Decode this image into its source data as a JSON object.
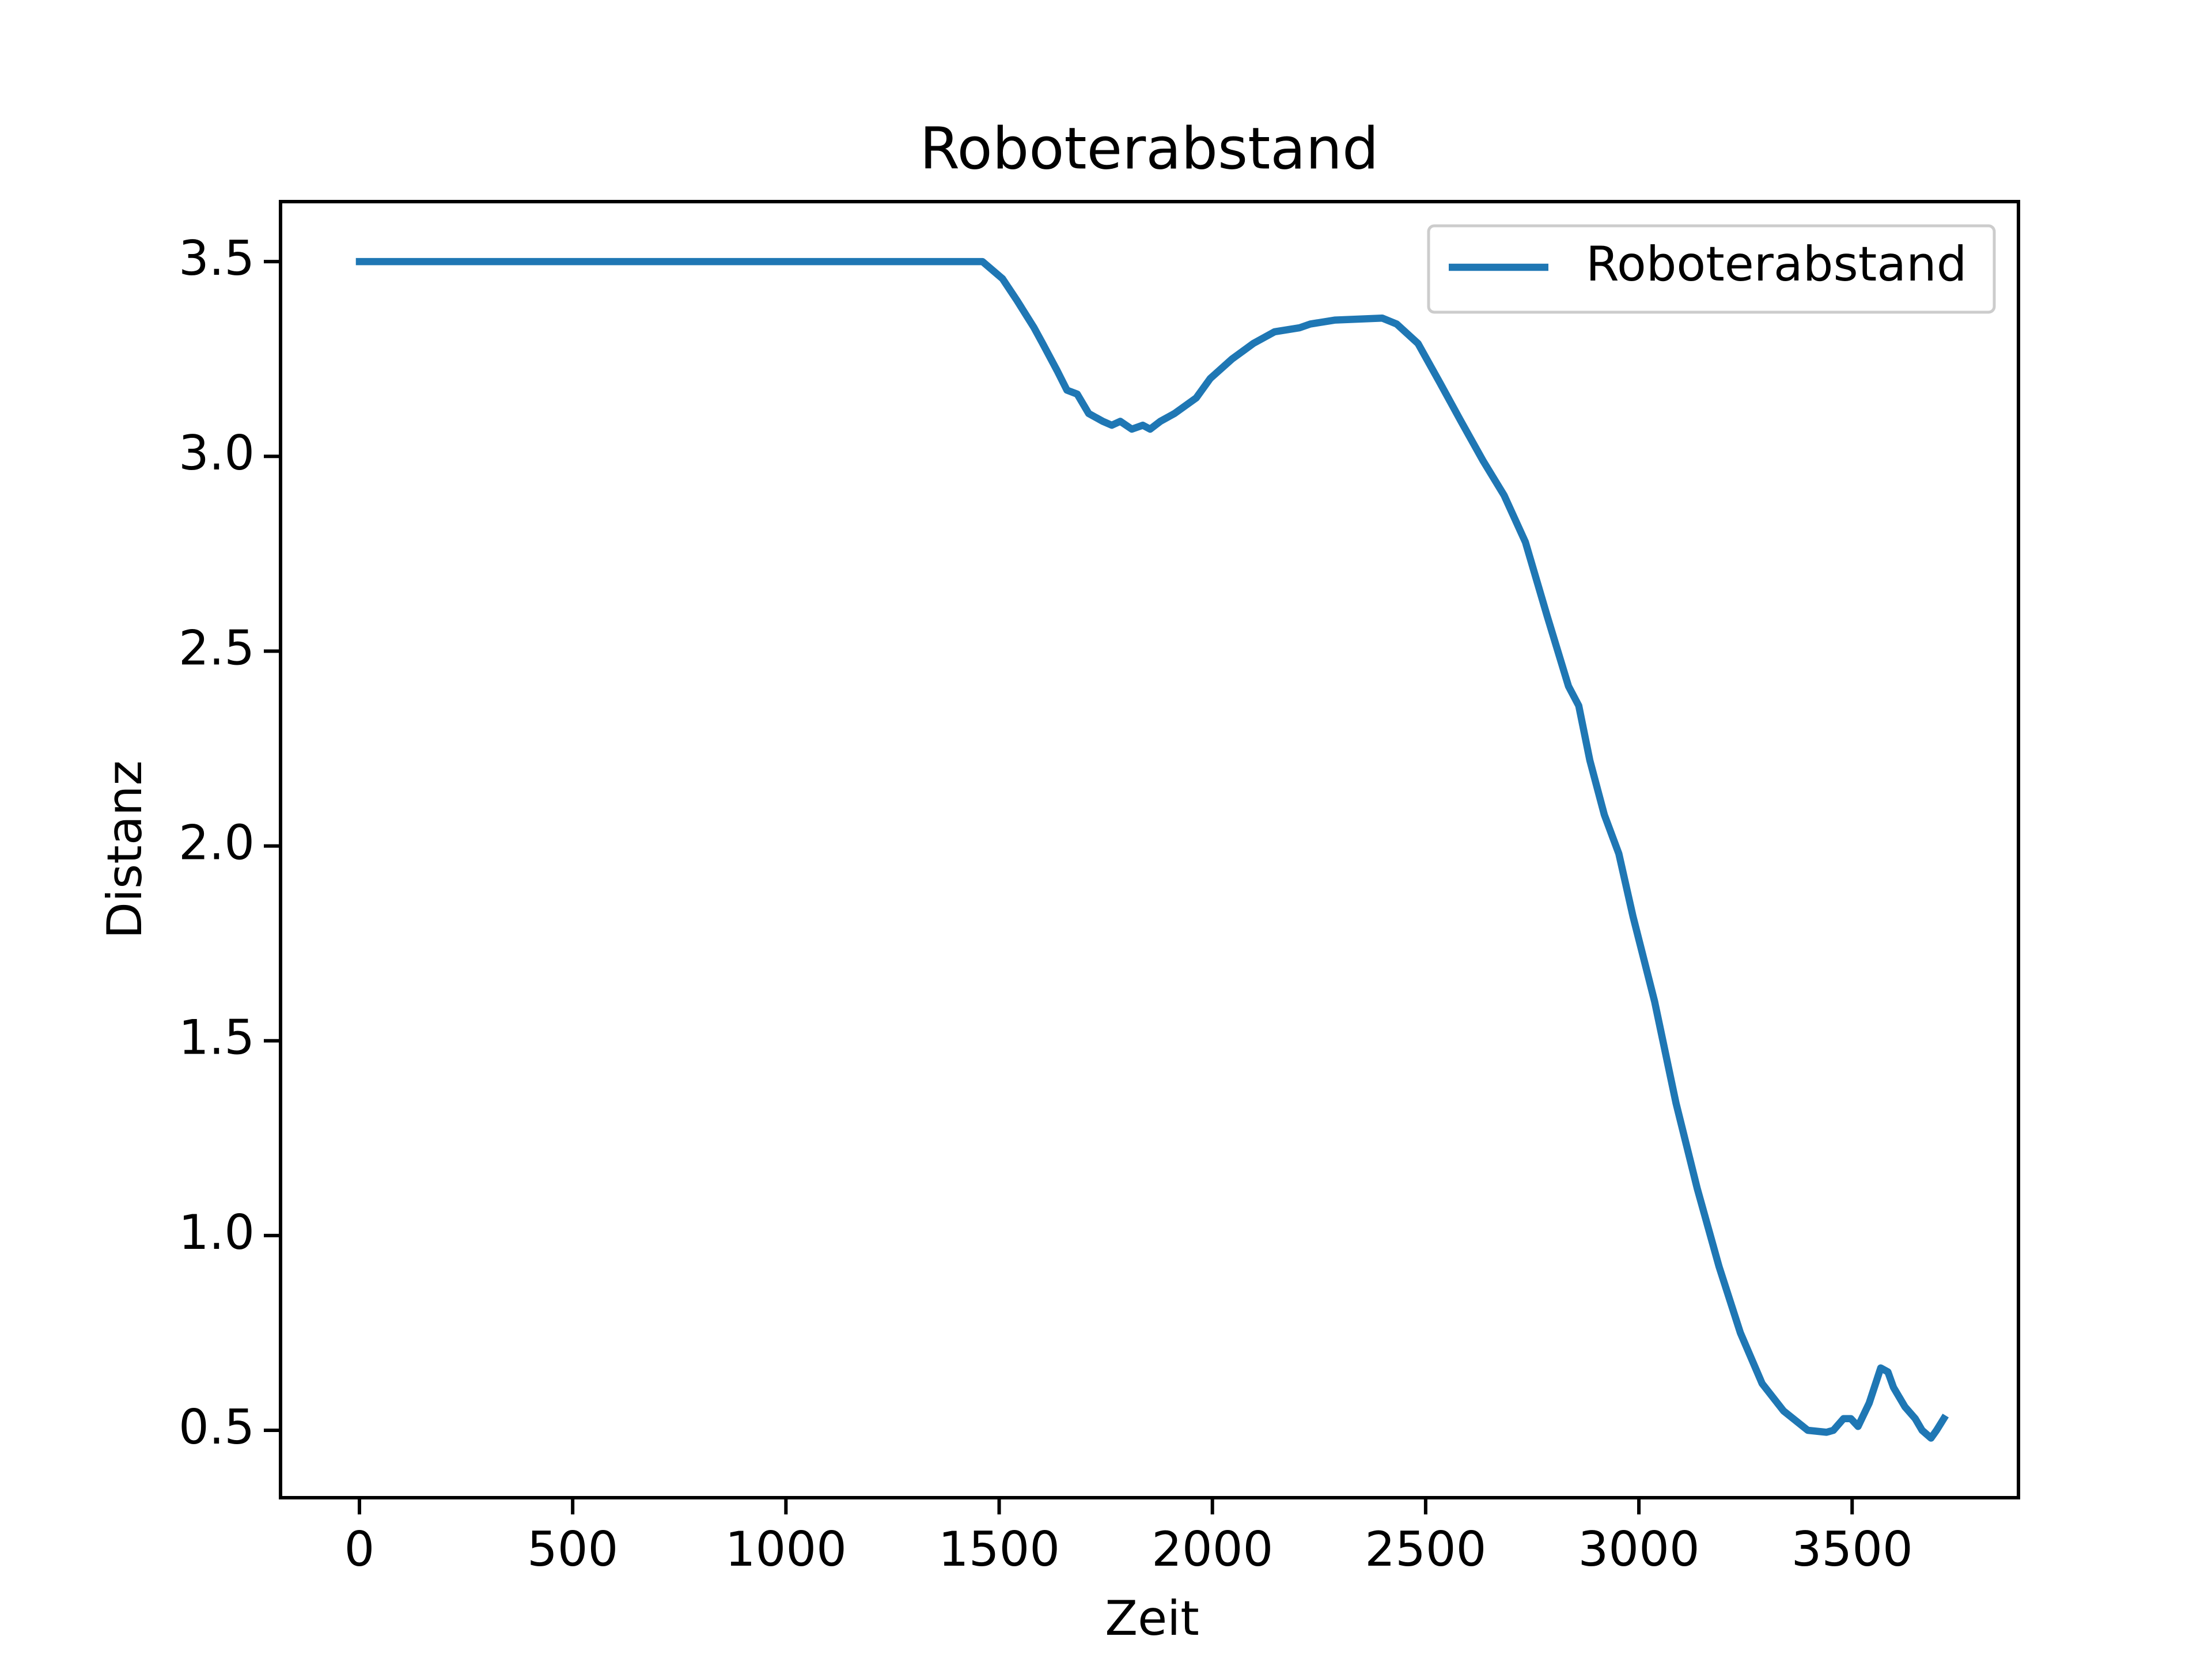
{
  "chart_data": {
    "type": "line",
    "title": "Roboterabstand",
    "x_label": "Zeit",
    "y_label": "Distanz",
    "legend": "upper right",
    "grid": false,
    "xlim": [
      -185,
      3890
    ],
    "ylim": [
      0.327,
      3.654
    ],
    "xticks": [
      0,
      500,
      1000,
      1500,
      2000,
      2500,
      3000,
      3500
    ],
    "yticks": [
      0.5,
      {
        "value": 1,
        "label": "1.0"
      },
      1.5,
      {
        "value": 2,
        "label": "2.0"
      },
      2.5,
      {
        "value": 3,
        "label": "3.0"
      },
      3.5
    ],
    "series": [
      {
        "name": "Roboterabstand",
        "color": "#1f77b4",
        "x": [
          0,
          1461,
          1508,
          1542,
          1582,
          1602,
          1636,
          1659,
          1683,
          1710,
          1743,
          1764,
          1784,
          1811,
          1837,
          1854,
          1878,
          1911,
          1962,
          1995,
          2046,
          2096,
          2146,
          2204,
          2230,
          2288,
          2398,
          2432,
          2482,
          2533,
          2583,
          2634,
          2684,
          2734,
          2785,
          2835,
          2859,
          2885,
          2919,
          2953,
          2986,
          3037,
          3087,
          3137,
          3188,
          3238,
          3289,
          3339,
          3396,
          3440,
          3456,
          3480,
          3497,
          3514,
          3540,
          3567,
          3584,
          3597,
          3624,
          3648,
          3664,
          3685,
          3698,
          3715
        ],
        "values": [
          3.5,
          3.5,
          3.456,
          3.4,
          3.33,
          3.29,
          3.22,
          3.17,
          3.16,
          3.11,
          3.09,
          3.08,
          3.09,
          3.07,
          3.08,
          3.07,
          3.09,
          3.11,
          3.15,
          3.2,
          3.25,
          3.29,
          3.32,
          3.33,
          3.34,
          3.35,
          3.355,
          3.34,
          3.29,
          3.19,
          3.09,
          2.99,
          2.9,
          2.78,
          2.59,
          2.41,
          2.36,
          2.22,
          2.08,
          1.98,
          1.82,
          1.6,
          1.34,
          1.12,
          0.92,
          0.75,
          0.62,
          0.55,
          0.5,
          0.495,
          0.5,
          0.53,
          0.53,
          0.51,
          0.57,
          0.66,
          0.65,
          0.61,
          0.56,
          0.53,
          0.5,
          0.48,
          0.5,
          0.53
        ]
      }
    ]
  }
}
